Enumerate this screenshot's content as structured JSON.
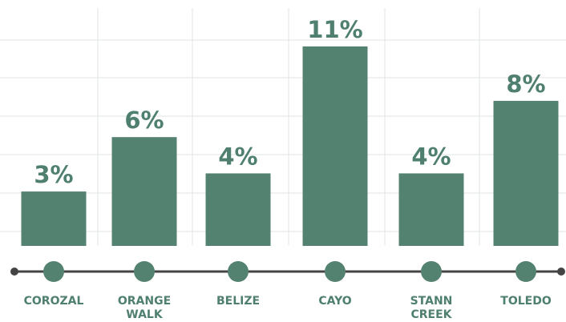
{
  "chart_data": {
    "type": "bar",
    "categories": [
      "COROZAL",
      "ORANGE WALK",
      "BELIZE",
      "CAYO",
      "STANN CREEK",
      "TOLEDO"
    ],
    "values": [
      3,
      6,
      4,
      11,
      4,
      8
    ],
    "value_labels": [
      "3%",
      "6%",
      "4%",
      "11%",
      "4%",
      "8%"
    ],
    "color": "#548270"
  }
}
